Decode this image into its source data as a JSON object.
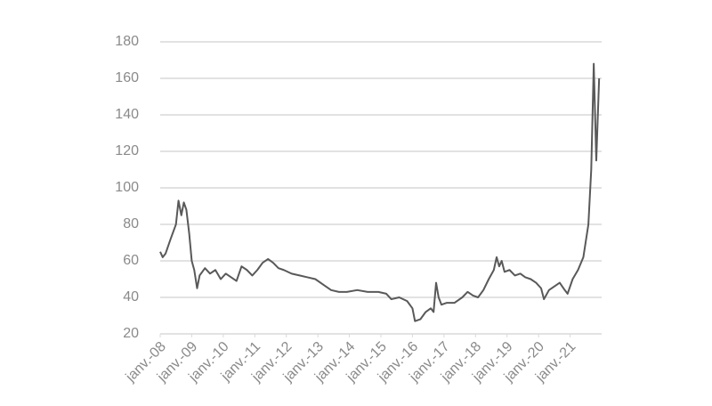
{
  "chart_data": {
    "type": "line",
    "x": [
      2008.0,
      2008.08,
      2008.17,
      2008.33,
      2008.5,
      2008.58,
      2008.67,
      2008.75,
      2008.83,
      2008.92,
      2009.0,
      2009.08,
      2009.17,
      2009.25,
      2009.42,
      2009.58,
      2009.75,
      2009.92,
      2010.08,
      2010.25,
      2010.42,
      2010.58,
      2010.75,
      2010.92,
      2011.08,
      2011.25,
      2011.42,
      2011.58,
      2011.75,
      2011.92,
      2012.17,
      2012.42,
      2012.67,
      2012.92,
      2013.17,
      2013.42,
      2013.67,
      2013.92,
      2014.25,
      2014.58,
      2014.92,
      2015.17,
      2015.33,
      2015.58,
      2015.83,
      2016.0,
      2016.08,
      2016.25,
      2016.42,
      2016.58,
      2016.67,
      2016.75,
      2016.83,
      2016.92,
      2017.08,
      2017.33,
      2017.58,
      2017.75,
      2017.92,
      2018.08,
      2018.25,
      2018.42,
      2018.58,
      2018.67,
      2018.75,
      2018.83,
      2018.92,
      2019.08,
      2019.25,
      2019.42,
      2019.58,
      2019.75,
      2019.92,
      2020.08,
      2020.17,
      2020.33,
      2020.5,
      2020.67,
      2020.83,
      2020.92,
      2021.08,
      2021.25,
      2021.42,
      2021.58,
      2021.67,
      2021.75,
      2021.83,
      2021.92
    ],
    "series": [
      {
        "color": "#595959",
        "values": [
          65,
          62,
          64,
          72,
          80,
          93,
          85,
          92,
          88,
          75,
          60,
          55,
          45,
          52,
          56,
          53,
          55,
          50,
          53,
          51,
          49,
          57,
          55,
          52,
          55,
          59,
          61,
          59,
          56,
          55,
          53,
          52,
          51,
          50,
          47,
          44,
          43,
          43,
          44,
          43,
          43,
          42,
          39,
          40,
          38,
          34,
          27,
          28,
          32,
          34,
          32,
          48,
          40,
          36,
          37,
          37,
          40,
          43,
          41,
          40,
          44,
          50,
          55,
          62,
          57,
          60,
          54,
          55,
          52,
          53,
          51,
          50,
          48,
          45,
          39,
          44,
          46,
          48,
          44,
          42,
          50,
          55,
          62,
          80,
          110,
          168,
          115,
          160
        ]
      }
    ],
    "xlim": [
      2008.0,
      2022.0
    ],
    "xticks": [
      {
        "value": 2008,
        "label": "janv.-08"
      },
      {
        "value": 2009,
        "label": "janv.-09"
      },
      {
        "value": 2010,
        "label": "janv.-10"
      },
      {
        "value": 2011,
        "label": "janv.-11"
      },
      {
        "value": 2012,
        "label": "janv.-12"
      },
      {
        "value": 2013,
        "label": "janv.-13"
      },
      {
        "value": 2014,
        "label": "janv.-14"
      },
      {
        "value": 2015,
        "label": "janv.-15"
      },
      {
        "value": 2016,
        "label": "janv.-16"
      },
      {
        "value": 2017,
        "label": "janv.-17"
      },
      {
        "value": 2018,
        "label": "janv.-18"
      },
      {
        "value": 2019,
        "label": "janv.-19"
      },
      {
        "value": 2020,
        "label": "janv.-20"
      },
      {
        "value": 2021,
        "label": "janv.-21"
      }
    ],
    "ylim": [
      20,
      180
    ],
    "yticks": [
      20,
      40,
      60,
      80,
      100,
      120,
      140,
      160,
      180
    ],
    "grid": true
  }
}
